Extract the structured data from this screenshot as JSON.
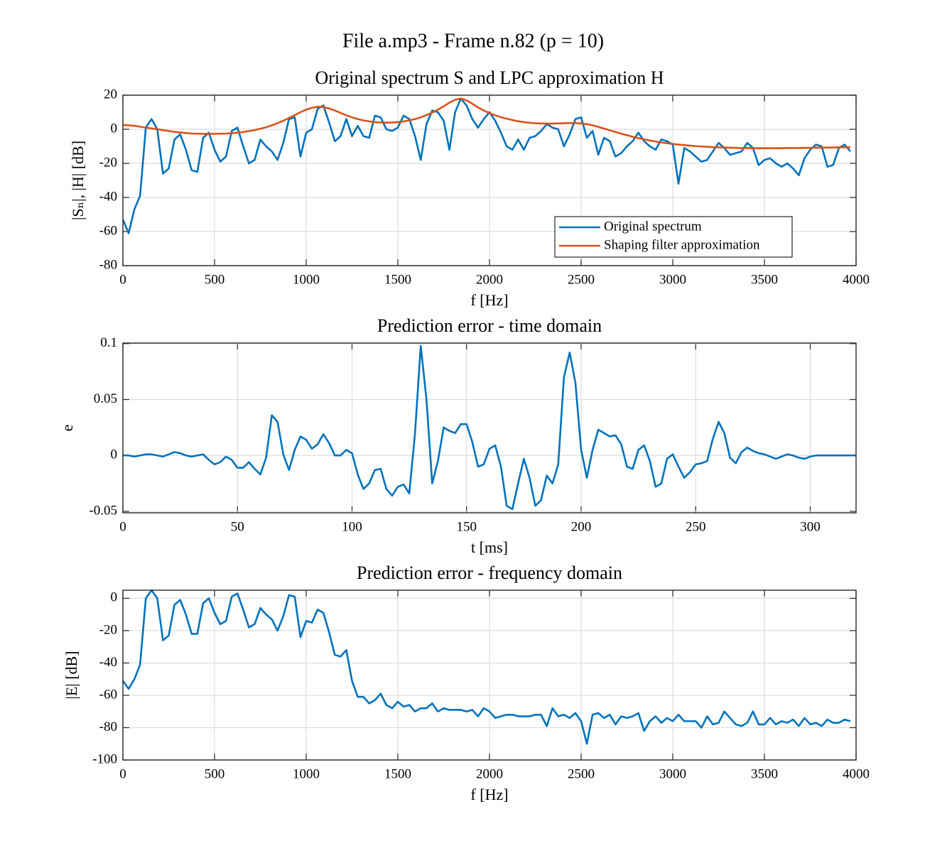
{
  "figure_title": "File a.mp3 - Frame n.82 (p = 10)",
  "chart_data": [
    {
      "type": "line",
      "title": "Original spectrum S and LPC approximation H",
      "xlabel": "f [Hz]",
      "ylabel": "|Sₙ|, |H| [dB]",
      "x": [
        0,
        31.25,
        62.5,
        93.75,
        125,
        156.25,
        187.5,
        218.75,
        250,
        281.25,
        312.5,
        343.75,
        375,
        406.25,
        437.5,
        468.75,
        500,
        531.25,
        562.5,
        593.75,
        625,
        656.25,
        687.5,
        718.75,
        750,
        781.25,
        812.5,
        843.75,
        875,
        906.25,
        937.5,
        968.75,
        1000,
        1031.25,
        1062.5,
        1093.75,
        1125,
        1156.25,
        1187.5,
        1218.75,
        1250,
        1281.25,
        1312.5,
        1343.75,
        1375,
        1406.25,
        1437.5,
        1468.75,
        1500,
        1531.25,
        1562.5,
        1593.75,
        1625,
        1656.25,
        1687.5,
        1718.75,
        1750,
        1781.25,
        1812.5,
        1843.75,
        1875,
        1906.25,
        1937.5,
        1968.75,
        2000,
        2031.25,
        2062.5,
        2093.75,
        2125,
        2156.25,
        2187.5,
        2218.75,
        2250,
        2281.25,
        2312.5,
        2343.75,
        2375,
        2406.25,
        2437.5,
        2468.75,
        2500,
        2531.25,
        2562.5,
        2593.75,
        2625,
        2656.25,
        2687.5,
        2718.75,
        2750,
        2781.25,
        2812.5,
        2843.75,
        2875,
        2906.25,
        2937.5,
        2968.75,
        3000,
        3031.25,
        3062.5,
        3093.75,
        3125,
        3156.25,
        3187.5,
        3218.75,
        3250,
        3281.25,
        3312.5,
        3343.75,
        3375,
        3406.25,
        3437.5,
        3468.75,
        3500,
        3531.25,
        3562.5,
        3593.75,
        3625,
        3656.25,
        3687.5,
        3718.75,
        3750,
        3781.25,
        3812.5,
        3843.75,
        3875,
        3906.25,
        3937.5,
        3968.75
      ],
      "series": [
        {
          "name": "Original spectrum",
          "color": "#0072bd",
          "values": [
            -53,
            -61,
            -47,
            -39,
            1,
            6,
            0,
            -26,
            -23,
            -6,
            -3,
            -12,
            -24,
            -25,
            -5,
            -2,
            -12,
            -19,
            -16,
            -1,
            1,
            -10,
            -20,
            -18,
            -6,
            -10,
            -13,
            -18,
            -8,
            6,
            7,
            -16,
            -2,
            0,
            12,
            14,
            4,
            -7,
            -4,
            6,
            -4,
            2,
            -4,
            -5,
            8,
            7,
            0,
            -1,
            1,
            8,
            6,
            -4,
            -18,
            3,
            11,
            10,
            5,
            -12,
            10,
            18,
            14,
            6,
            1,
            6,
            10,
            5,
            -2,
            -10,
            -12,
            -6,
            -12,
            -5,
            -4,
            -1,
            3,
            1,
            0,
            -10,
            -3,
            6,
            7,
            -5,
            -1,
            -15,
            -5,
            -7,
            -16,
            -14,
            -10,
            -7,
            -2,
            -7,
            -10,
            -12,
            -6,
            -7,
            -9,
            -32,
            -11,
            -13,
            -16,
            -19,
            -18,
            -13,
            -8,
            -11,
            -15,
            -14,
            -13,
            -8,
            -11,
            -21,
            -18,
            -17,
            -20,
            -22,
            -20,
            -23,
            -27,
            -17,
            -12,
            -9,
            -10,
            -22,
            -21,
            -11,
            -9,
            -13
          ]
        },
        {
          "name": "Shaping filter approximation",
          "color": "#d95319",
          "values": [
            2.5,
            2.3,
            2,
            1.5,
            1,
            0.5,
            0,
            -0.5,
            -1,
            -1.5,
            -1.9,
            -2.2,
            -2.5,
            -2.6,
            -2.7,
            -2.7,
            -2.7,
            -2.6,
            -2.5,
            -2.3,
            -2,
            -1.6,
            -1.1,
            -0.5,
            0.3,
            1.2,
            2.3,
            3.6,
            5,
            6.6,
            8.3,
            10,
            11.5,
            12.6,
            13.2,
            13,
            12.2,
            11,
            9.6,
            8.2,
            7,
            6,
            5.2,
            4.6,
            4.2,
            4,
            3.9,
            4,
            4.2,
            4.6,
            5.2,
            6,
            7,
            8.3,
            9.8,
            11.5,
            13.5,
            15.6,
            17.3,
            18,
            17,
            15,
            12.8,
            11,
            9.5,
            8.2,
            7.1,
            6.2,
            5.4,
            4.7,
            4.2,
            3.8,
            3.5,
            3.4,
            3.3,
            3.3,
            3.4,
            3.5,
            3.6,
            3.6,
            3.4,
            3,
            2.3,
            1.4,
            0.4,
            -0.6,
            -1.6,
            -2.6,
            -3.5,
            -4.4,
            -5.2,
            -5.9,
            -6.6,
            -7.2,
            -7.7,
            -8.2,
            -8.6,
            -9,
            -9.3,
            -9.6,
            -9.9,
            -10.1,
            -10.3,
            -10.5,
            -10.6,
            -10.7,
            -10.8,
            -10.9,
            -11,
            -11,
            -11.1,
            -11.1,
            -11.1,
            -11.1,
            -11.1,
            -11.1,
            -11,
            -11,
            -11,
            -10.9,
            -10.9,
            -10.8,
            -10.8,
            -10.7,
            -10.7,
            -10.6,
            -10.6,
            -10.5
          ]
        }
      ],
      "xlim": [
        0,
        4000
      ],
      "xticks": [
        0,
        500,
        1000,
        1500,
        2000,
        2500,
        3000,
        3500,
        4000
      ],
      "ylim": [
        -80,
        20
      ],
      "yticks": [
        -80,
        -60,
        -40,
        -20,
        0,
        20
      ],
      "grid": true,
      "legend": "southeast"
    },
    {
      "type": "line",
      "title": "Prediction error - time domain",
      "xlabel": "t [ms]",
      "ylabel": "e",
      "x": [
        0,
        2.5,
        5,
        7.5,
        10,
        12.5,
        15,
        17.5,
        20,
        22.5,
        25,
        27.5,
        30,
        32.5,
        35,
        37.5,
        40,
        42.5,
        45,
        47.5,
        50,
        52.5,
        55,
        57.5,
        60,
        62.5,
        65,
        67.5,
        70,
        72.5,
        75,
        77.5,
        80,
        82.5,
        85,
        87.5,
        90,
        92.5,
        95,
        97.5,
        100,
        102.5,
        105,
        107.5,
        110,
        112.5,
        115,
        117.5,
        120,
        122.5,
        125,
        127.5,
        130,
        132.5,
        135,
        137.5,
        140,
        142.5,
        145,
        147.5,
        150,
        152.5,
        155,
        157.5,
        160,
        162.5,
        165,
        167.5,
        170,
        172.5,
        175,
        177.5,
        180,
        182.5,
        185,
        187.5,
        190,
        192.5,
        195,
        197.5,
        200,
        202.5,
        205,
        207.5,
        210,
        212.5,
        215,
        217.5,
        220,
        222.5,
        225,
        227.5,
        230,
        232.5,
        235,
        237.5,
        240,
        242.5,
        245,
        247.5,
        250,
        252.5,
        255,
        257.5,
        260,
        262.5,
        265,
        267.5,
        270,
        272.5,
        275,
        277.5,
        280,
        282.5,
        285,
        287.5,
        290,
        292.5,
        295,
        297.5,
        300,
        302.5,
        305,
        307.5,
        310,
        312.5,
        315,
        317.5,
        320
      ],
      "series": [
        {
          "name": "e",
          "color": "#0072bd",
          "values": [
            0,
            0,
            -0.001,
            0,
            0.001,
            0.001,
            0,
            -0.001,
            0.001,
            0.003,
            0.002,
            0,
            -0.001,
            0,
            0.001,
            -0.004,
            -0.008,
            -0.006,
            -0.001,
            -0.004,
            -0.011,
            -0.011,
            -0.006,
            -0.012,
            -0.017,
            -0.002,
            0.036,
            0.03,
            0.001,
            -0.013,
            0.005,
            0.017,
            0.014,
            0.006,
            0.01,
            0.019,
            0.011,
            0,
            0,
            0.005,
            0.002,
            -0.017,
            -0.03,
            -0.025,
            -0.013,
            -0.012,
            -0.03,
            -0.036,
            -0.028,
            -0.026,
            -0.034,
            0.02,
            0.098,
            0.05,
            -0.025,
            -0.005,
            0.025,
            0.022,
            0.02,
            0.028,
            0.028,
            0.012,
            -0.01,
            -0.008,
            0.006,
            0.009,
            -0.01,
            -0.045,
            -0.048,
            -0.025,
            -0.003,
            -0.02,
            -0.045,
            -0.04,
            -0.018,
            -0.025,
            -0.008,
            0.07,
            0.092,
            0.065,
            0.005,
            -0.02,
            0.005,
            0.023,
            0.02,
            0.017,
            0.018,
            0.01,
            -0.01,
            -0.012,
            0.005,
            0.009,
            -0.005,
            -0.028,
            -0.025,
            -0.003,
            0.001,
            -0.01,
            -0.02,
            -0.015,
            -0.008,
            -0.007,
            -0.005,
            0.015,
            0.03,
            0.02,
            -0.002,
            -0.007,
            0.003,
            0.007,
            0.004,
            0.002,
            0.001,
            -0.001,
            -0.003,
            -0.001,
            0.001,
            0,
            -0.002,
            -0.003,
            -0.001,
            0,
            0,
            0,
            0,
            0,
            0,
            0,
            0
          ]
        }
      ],
      "xlim": [
        0,
        320
      ],
      "xticks": [
        0,
        50,
        100,
        150,
        200,
        250,
        300
      ],
      "ylim": [
        -0.0513,
        0.1005
      ],
      "yticks": [
        -0.05,
        0,
        0.05,
        0.1
      ],
      "grid": true
    },
    {
      "type": "line",
      "title": "Prediction error - frequency domain",
      "xlabel": "f [Hz]",
      "ylabel": "|E| [dB]",
      "x": [
        0,
        31.25,
        62.5,
        93.75,
        125,
        156.25,
        187.5,
        218.75,
        250,
        281.25,
        312.5,
        343.75,
        375,
        406.25,
        437.5,
        468.75,
        500,
        531.25,
        562.5,
        593.75,
        625,
        656.25,
        687.5,
        718.75,
        750,
        781.25,
        812.5,
        843.75,
        875,
        906.25,
        937.5,
        968.75,
        1000,
        1031.25,
        1062.5,
        1093.75,
        1125,
        1156.25,
        1187.5,
        1218.75,
        1250,
        1281.25,
        1312.5,
        1343.75,
        1375,
        1406.25,
        1437.5,
        1468.75,
        1500,
        1531.25,
        1562.5,
        1593.75,
        1625,
        1656.25,
        1687.5,
        1718.75,
        1750,
        1781.25,
        1812.5,
        1843.75,
        1875,
        1906.25,
        1937.5,
        1968.75,
        2000,
        2031.25,
        2062.5,
        2093.75,
        2125,
        2156.25,
        2187.5,
        2218.75,
        2250,
        2281.25,
        2312.5,
        2343.75,
        2375,
        2406.25,
        2437.5,
        2468.75,
        2500,
        2531.25,
        2562.5,
        2593.75,
        2625,
        2656.25,
        2687.5,
        2718.75,
        2750,
        2781.25,
        2812.5,
        2843.75,
        2875,
        2906.25,
        2937.5,
        2968.75,
        3000,
        3031.25,
        3062.5,
        3093.75,
        3125,
        3156.25,
        3187.5,
        3218.75,
        3250,
        3281.25,
        3312.5,
        3343.75,
        3375,
        3406.25,
        3437.5,
        3468.75,
        3500,
        3531.25,
        3562.5,
        3593.75,
        3625,
        3656.25,
        3687.5,
        3718.75,
        3750,
        3781.25,
        3812.5,
        3843.75,
        3875,
        3906.25,
        3937.5,
        3968.75
      ],
      "series": [
        {
          "name": "|E|",
          "color": "#0072bd",
          "values": [
            -51,
            -56,
            -50,
            -41,
            0,
            5,
            0,
            -26,
            -23,
            -4,
            -1,
            -10,
            -22,
            -22,
            -3,
            0,
            -9,
            -16,
            -14,
            1,
            3,
            -7,
            -18,
            -16,
            -6,
            -10,
            -13,
            -20,
            -11,
            2,
            1,
            -24,
            -14,
            -15,
            -7,
            -9,
            -21,
            -35,
            -36,
            -32,
            -51,
            -61,
            -61,
            -65,
            -63,
            -59,
            -66,
            -68,
            -64,
            -67,
            -66,
            -70,
            -68,
            -68,
            -65,
            -70,
            -68,
            -69,
            -69,
            -69,
            -70,
            -69,
            -73,
            -68,
            -70,
            -74,
            -73,
            -72,
            -72,
            -73,
            -73,
            -73,
            -72,
            -72,
            -79,
            -68,
            -73,
            -72,
            -74,
            -71,
            -76,
            -90,
            -72,
            -71,
            -74,
            -72,
            -78,
            -73,
            -74,
            -73,
            -71,
            -82,
            -76,
            -73,
            -77,
            -74,
            -76,
            -72,
            -76,
            -76,
            -76,
            -80,
            -73,
            -78,
            -77,
            -70,
            -74,
            -78,
            -79,
            -77,
            -70,
            -78,
            -78,
            -74,
            -78,
            -76,
            -77,
            -75,
            -79,
            -74,
            -78,
            -77,
            -79,
            -75,
            -77,
            -77,
            -75,
            -76
          ]
        }
      ],
      "xlim": [
        0,
        4000
      ],
      "xticks": [
        0,
        500,
        1000,
        1500,
        2000,
        2500,
        3000,
        3500,
        4000
      ],
      "ylim": [
        -100,
        5
      ],
      "yticks": [
        -100,
        -80,
        -60,
        -40,
        -20,
        0
      ],
      "grid": true
    }
  ]
}
